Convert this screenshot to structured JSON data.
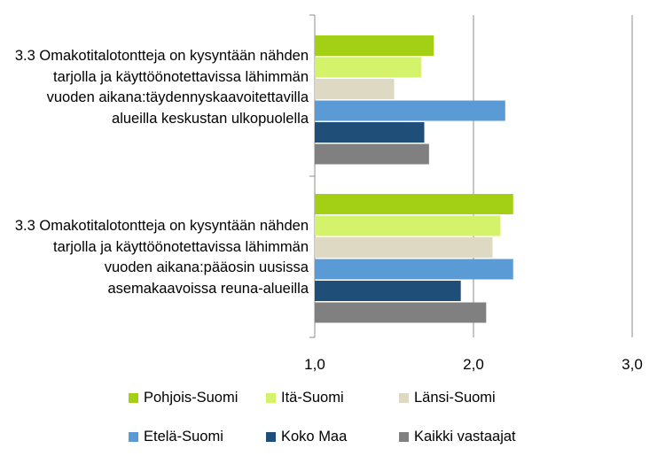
{
  "chart_data": {
    "type": "bar",
    "orientation": "horizontal",
    "categories": [
      "3.3 Omakotitalotontteja on kysyntään nähden tarjolla ja käyttöönotettavissa lähimmän vuoden aikana:täydennyskaavoitettavilla alueilla keskustan ulkopuolella",
      "3.3 Omakotitalotontteja on kysyntään nähden tarjolla ja käyttöönotettavissa lähimmän vuoden aikana:pääosin uusissa asemakaavoissa reuna-alueilla"
    ],
    "series": [
      {
        "name": "Pohjois-Suomi",
        "color": "#a3cf14",
        "values": [
          1.75,
          2.25
        ]
      },
      {
        "name": "Itä-Suomi",
        "color": "#d5f26b",
        "values": [
          1.67,
          2.17
        ]
      },
      {
        "name": "Länsi-Suomi",
        "color": "#ddd9c3",
        "values": [
          1.5,
          2.12
        ]
      },
      {
        "name": "Etelä-Suomi",
        "color": "#5b9bd5",
        "values": [
          2.2,
          2.25
        ]
      },
      {
        "name": "Koko Maa",
        "color": "#1f4e79",
        "values": [
          1.69,
          1.92
        ]
      },
      {
        "name": "Kaikki vastaajat",
        "color": "#808080",
        "values": [
          1.72,
          2.08
        ]
      }
    ],
    "xlim": [
      1.0,
      3.0
    ],
    "xticks": [
      "1,0",
      "2,0",
      "3,0"
    ],
    "grid": true,
    "legend_position": "bottom"
  }
}
